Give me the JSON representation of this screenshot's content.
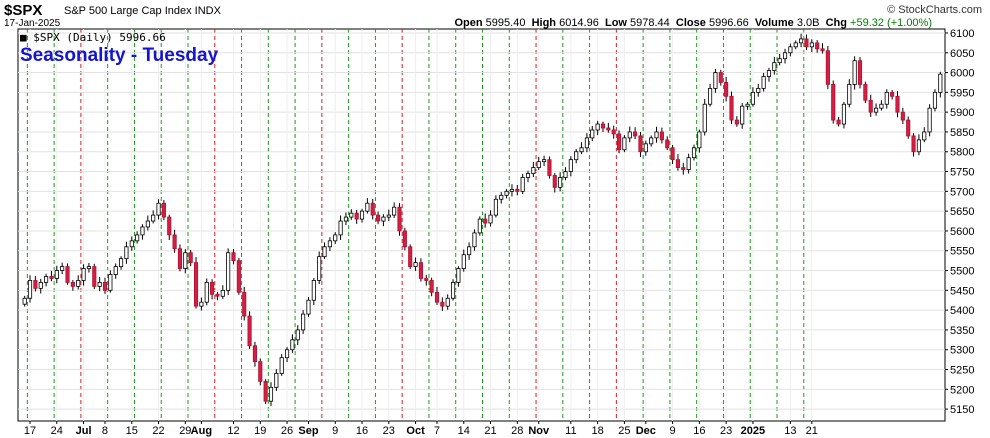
{
  "header": {
    "symbol": "$SPX",
    "description": "S&P 500 Large Cap Index INDX",
    "date": "17-Jan-2025",
    "brand": "© StockCharts.com",
    "open_label": "Open",
    "open": "5995.40",
    "high_label": "High",
    "high": "6014.96",
    "low_label": "Low",
    "low": "5978.44",
    "close_label": "Close",
    "close": "5996.66",
    "volume_label": "Volume",
    "volume": "3.0B",
    "chg_label": "Chg",
    "chg": "+59.32 (+1.00%)",
    "legend": "■ $SPX (Daily) 5996.66"
  },
  "chart_data": {
    "type": "candlestick",
    "title": "Seasonality - Tuesday",
    "ylim": [
      5120,
      6110
    ],
    "yticks": [
      5150,
      5200,
      5250,
      5300,
      5350,
      5400,
      5450,
      5500,
      5550,
      5600,
      5650,
      5700,
      5750,
      5800,
      5850,
      5900,
      5950,
      6000,
      6050,
      6100
    ],
    "xticks": [
      {
        "label": "17",
        "i": 1,
        "bold": false
      },
      {
        "label": "24",
        "i": 6,
        "bold": false
      },
      {
        "label": "Jul",
        "i": 11,
        "bold": true
      },
      {
        "label": "8",
        "i": 15,
        "bold": false
      },
      {
        "label": "15",
        "i": 20,
        "bold": false
      },
      {
        "label": "22",
        "i": 25,
        "bold": false
      },
      {
        "label": "29",
        "i": 30,
        "bold": false
      },
      {
        "label": "Aug",
        "i": 33,
        "bold": true
      },
      {
        "label": "12",
        "i": 39,
        "bold": false
      },
      {
        "label": "19",
        "i": 44,
        "bold": false
      },
      {
        "label": "26",
        "i": 49,
        "bold": false
      },
      {
        "label": "Sep",
        "i": 53,
        "bold": true
      },
      {
        "label": "9",
        "i": 58,
        "bold": false
      },
      {
        "label": "16",
        "i": 63,
        "bold": false
      },
      {
        "label": "23",
        "i": 68,
        "bold": false
      },
      {
        "label": "Oct",
        "i": 73,
        "bold": true
      },
      {
        "label": "7",
        "i": 77,
        "bold": false
      },
      {
        "label": "14",
        "i": 82,
        "bold": false
      },
      {
        "label": "21",
        "i": 87,
        "bold": false
      },
      {
        "label": "28",
        "i": 92,
        "bold": false
      },
      {
        "label": "Nov",
        "i": 96,
        "bold": true
      },
      {
        "label": "11",
        "i": 102,
        "bold": false
      },
      {
        "label": "18",
        "i": 107,
        "bold": false
      },
      {
        "label": "25",
        "i": 112,
        "bold": false
      },
      {
        "label": "Dec",
        "i": 116,
        "bold": true
      },
      {
        "label": "9",
        "i": 121,
        "bold": false
      },
      {
        "label": "16",
        "i": 126,
        "bold": false
      },
      {
        "label": "23",
        "i": 131,
        "bold": false
      },
      {
        "label": "2025",
        "i": 136,
        "bold": true
      },
      {
        "label": "13",
        "i": 143,
        "bold": false
      },
      {
        "label": "21",
        "i": 147,
        "bold": false
      }
    ],
    "tuesday_down": [
      false,
      false,
      true,
      false,
      false,
      false,
      false,
      true,
      false,
      false,
      false,
      true,
      false,
      false,
      true,
      false,
      false,
      false,
      false,
      true,
      false,
      false,
      true,
      false,
      false,
      false,
      false,
      false,
      false,
      false
    ],
    "closes": [
      5430,
      5475,
      5455,
      5470,
      5485,
      5480,
      5500,
      5510,
      5470,
      5460,
      5475,
      5505,
      5510,
      5460,
      5470,
      5450,
      5490,
      5510,
      5530,
      5560,
      5575,
      5590,
      5610,
      5625,
      5640,
      5670,
      5635,
      5590,
      5555,
      5505,
      5545,
      5520,
      5410,
      5420,
      5470,
      5440,
      5435,
      5450,
      5545,
      5525,
      5445,
      5385,
      5310,
      5270,
      5220,
      5170,
      5205,
      5240,
      5280,
      5300,
      5325,
      5350,
      5390,
      5425,
      5475,
      5535,
      5560,
      5575,
      5590,
      5625,
      5635,
      5645,
      5630,
      5650,
      5670,
      5640,
      5625,
      5635,
      5640,
      5660,
      5600,
      5560,
      5510,
      5520,
      5480,
      5475,
      5445,
      5420,
      5410,
      5430,
      5470,
      5505,
      5540,
      5560,
      5595,
      5630,
      5620,
      5640,
      5680,
      5690,
      5700,
      5705,
      5700,
      5735,
      5745,
      5760,
      5775,
      5780,
      5740,
      5710,
      5735,
      5750,
      5780,
      5800,
      5810,
      5835,
      5855,
      5870,
      5860,
      5855,
      5845,
      5805,
      5835,
      5850,
      5840,
      5800,
      5820,
      5835,
      5850,
      5830,
      5810,
      5780,
      5760,
      5755,
      5785,
      5810,
      5850,
      5920,
      5960,
      6000,
      5975,
      5940,
      5880,
      5870,
      5915,
      5920,
      5950,
      5960,
      5990,
      6005,
      6025,
      6035,
      6050,
      6065,
      6075,
      6085,
      6065,
      6075,
      6060,
      6055,
      5970,
      5880,
      5870,
      5920,
      5970,
      6030,
      5970,
      5930,
      5900,
      5910,
      5920,
      5950,
      5940,
      5900,
      5880,
      5840,
      5800,
      5830,
      5850,
      5910,
      5950,
      5996
    ]
  }
}
